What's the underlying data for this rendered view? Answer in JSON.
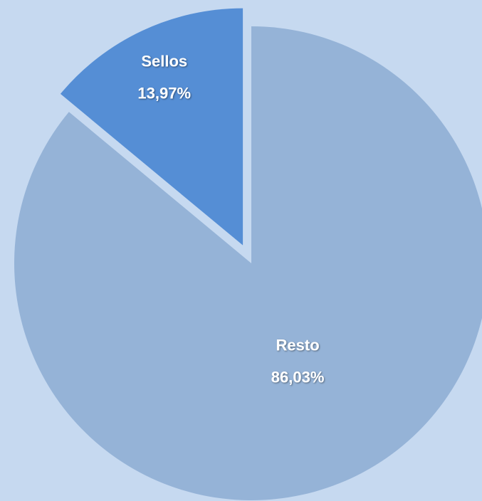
{
  "chart_data": {
    "type": "pie",
    "categories": [
      "Resto",
      "Sellos"
    ],
    "values": [
      86.03,
      13.97
    ],
    "value_labels": [
      "86,03%",
      "13,97%"
    ],
    "colors": [
      "#95b3d7",
      "#558ed5"
    ],
    "explode": [
      false,
      true
    ]
  }
}
